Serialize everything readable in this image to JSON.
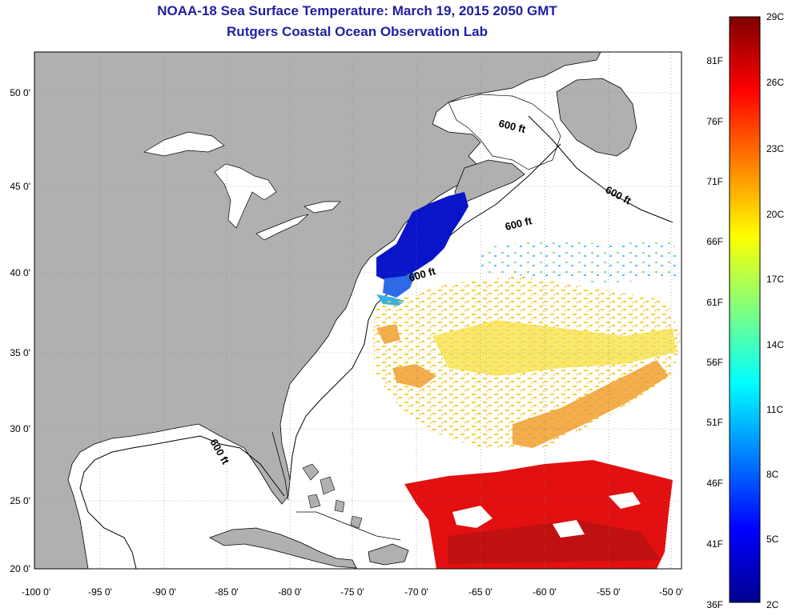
{
  "title": "NOAA-18 Sea Surface Temperature:  March 19, 2015 2050 GMT",
  "subtitle": "Rutgers Coastal Ocean Observation Lab",
  "lat_labels": [
    "50 0'",
    "45 0'",
    "40 0'",
    "35 0'",
    "30 0'",
    "25 0'",
    "20 0'"
  ],
  "lon_labels": [
    "-100 0'",
    "-95 0'",
    "-90 0'",
    "-85 0'",
    "-80 0'",
    "-75 0'",
    "-70 0'",
    "-65 0'",
    "-60 0'",
    "-55 0'",
    "-50 0'"
  ],
  "isobath_label": "600 ft",
  "colorbar": {
    "fahrenheit": [
      "81F",
      "76F",
      "71F",
      "66F",
      "61F",
      "56F",
      "51F",
      "46F",
      "41F",
      "36F"
    ],
    "celsius": [
      "29C",
      "26C",
      "23C",
      "20C",
      "17C",
      "14C",
      "11C",
      "8C",
      "5C",
      "2C"
    ],
    "top_color": "#800000",
    "bottom_color": "#00008f"
  },
  "colors": {
    "land": "#b0b0b0",
    "ocean": "#ffffff",
    "grid": "#808080",
    "title": "#1f1fa0"
  }
}
